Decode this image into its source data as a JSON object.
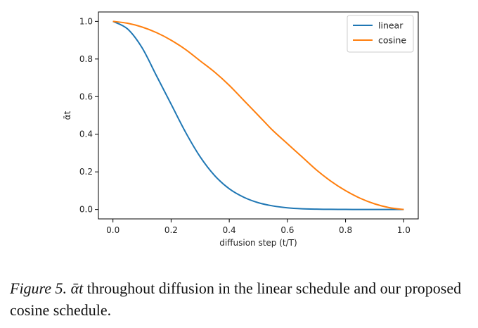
{
  "chart_data": {
    "type": "line",
    "xlabel": "diffusion step (t/T)",
    "ylabel": "ᾱt",
    "xlim": [
      -0.05,
      1.05
    ],
    "ylim": [
      -0.05,
      1.05
    ],
    "xticks": [
      "0.0",
      "0.2",
      "0.4",
      "0.6",
      "0.8",
      "1.0"
    ],
    "yticks": [
      "0.0",
      "0.2",
      "0.4",
      "0.6",
      "0.8",
      "1.0"
    ],
    "grid": false,
    "legend_position": "top-right",
    "x": [
      0.0,
      0.05,
      0.1,
      0.15,
      0.2,
      0.25,
      0.3,
      0.35,
      0.4,
      0.45,
      0.5,
      0.55,
      0.6,
      0.65,
      0.7,
      0.75,
      0.8,
      0.85,
      0.9,
      0.95,
      1.0
    ],
    "series": [
      {
        "name": "linear",
        "color": "#1f77b4",
        "values": [
          1.0,
          0.96,
          0.86,
          0.71,
          0.56,
          0.41,
          0.28,
          0.18,
          0.11,
          0.065,
          0.036,
          0.019,
          0.009,
          0.004,
          0.0018,
          0.0008,
          0.0003,
          0.0001,
          4e-05,
          1e-05,
          0.0
        ]
      },
      {
        "name": "cosine",
        "color": "#ff7f0e",
        "values": [
          1.0,
          0.99,
          0.97,
          0.94,
          0.9,
          0.85,
          0.79,
          0.73,
          0.66,
          0.58,
          0.5,
          0.42,
          0.35,
          0.28,
          0.21,
          0.15,
          0.1,
          0.06,
          0.03,
          0.01,
          0.0
        ]
      }
    ]
  },
  "caption": {
    "figure_label": "Figure 5.",
    "symbol": "ᾱt",
    "text": " throughout diffusion in the linear schedule and our proposed cosine schedule."
  }
}
